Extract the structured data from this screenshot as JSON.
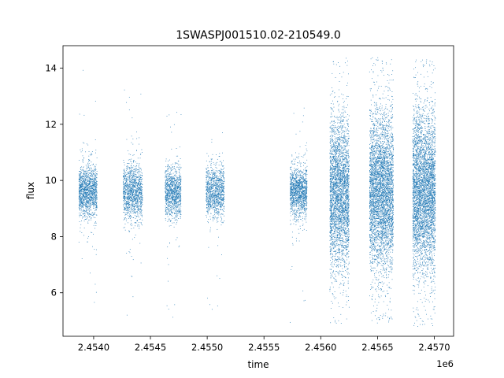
{
  "chart_data": {
    "type": "scatter",
    "title": "1SWASPJ001510.02-210549.0",
    "xlabel": "time",
    "ylabel": "flux",
    "x_offset_label": "1e6",
    "xlim": [
      2453730,
      2457170
    ],
    "ylim": [
      4.45,
      14.8
    ],
    "x_ticks": [
      2.454,
      2.4545,
      2.455,
      2.4555,
      2.456,
      2.4565,
      2.457
    ],
    "x_tick_labels": [
      "2.4540",
      "2.4545",
      "2.4550",
      "2.4555",
      "2.4560",
      "2.4565",
      "2.4570"
    ],
    "y_ticks": [
      6,
      8,
      10,
      12,
      14
    ],
    "y_tick_labels": [
      "6",
      "8",
      "10",
      "12",
      "14"
    ],
    "point_color": "#1f77b4",
    "grid": false,
    "legend": "none",
    "series": [
      {
        "name": "",
        "observing_seasons": [
          {
            "x_start": 2453870,
            "x_end": 2454030,
            "flux_center": 9.6,
            "flux_spread": 0.45,
            "flux_min": 5.5,
            "flux_max": 14.3,
            "points": 1400
          },
          {
            "x_start": 2454260,
            "x_end": 2454430,
            "flux_center": 9.6,
            "flux_spread": 0.5,
            "flux_min": 5.1,
            "flux_max": 13.4,
            "points": 1300
          },
          {
            "x_start": 2454630,
            "x_end": 2454770,
            "flux_center": 9.6,
            "flux_spread": 0.45,
            "flux_min": 5.1,
            "flux_max": 12.7,
            "points": 1100
          },
          {
            "x_start": 2454990,
            "x_end": 2455150,
            "flux_center": 9.6,
            "flux_spread": 0.45,
            "flux_min": 5.0,
            "flux_max": 13.6,
            "points": 1100
          },
          {
            "x_start": 2455730,
            "x_end": 2455880,
            "flux_center": 9.6,
            "flux_spread": 0.45,
            "flux_min": 4.9,
            "flux_max": 12.6,
            "points": 1300
          },
          {
            "x_start": 2456080,
            "x_end": 2456250,
            "flux_center": 9.5,
            "flux_spread": 1.3,
            "flux_min": 4.9,
            "flux_max": 14.4,
            "points": 3200
          },
          {
            "x_start": 2456430,
            "x_end": 2456640,
            "flux_center": 9.6,
            "flux_spread": 1.4,
            "flux_min": 4.9,
            "flux_max": 14.4,
            "points": 4200
          },
          {
            "x_start": 2456810,
            "x_end": 2457010,
            "flux_center": 9.6,
            "flux_spread": 1.4,
            "flux_min": 4.8,
            "flux_max": 14.3,
            "points": 4200
          }
        ]
      }
    ]
  }
}
